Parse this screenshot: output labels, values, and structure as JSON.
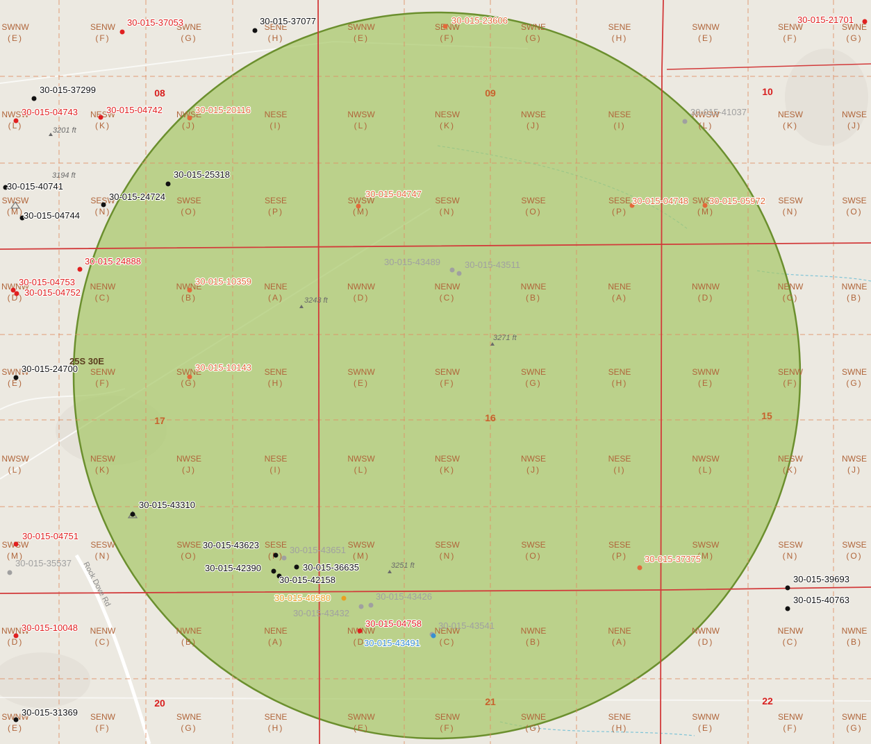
{
  "colors": {
    "background": "#ece9e1",
    "radius_fill": "#a7c76a",
    "radius_stroke": "#6b8f2e",
    "section_line": "#d23a3a",
    "quarter_line": "#e08d63",
    "qq_label": "#b0653a",
    "section_label": "#d81e1e",
    "section_label_inside": "#c7612c",
    "road": "#ffffff",
    "stream": "#7fc4d6"
  },
  "township": "25S 30E",
  "road_label": "Rock Dove Rd",
  "sections": [
    {
      "label": "08",
      "inside": false
    },
    {
      "label": "09",
      "inside": true
    },
    {
      "label": "10",
      "inside": false
    },
    {
      "label": "17",
      "inside": true
    },
    {
      "label": "16",
      "inside": true
    },
    {
      "label": "15",
      "inside": true
    },
    {
      "label": "20",
      "inside": false
    },
    {
      "label": "21",
      "inside": true
    },
    {
      "label": "22",
      "inside": false
    }
  ],
  "qq_rows": [
    [
      [
        "SWNW",
        "E"
      ],
      [
        "SENW",
        "F"
      ],
      [
        "SWNE",
        "G"
      ],
      [
        "SENE",
        "H"
      ],
      [
        "SWNW",
        "E"
      ],
      [
        "SENW",
        "F"
      ],
      [
        "SWNE",
        "G"
      ],
      [
        "SENE",
        "H"
      ],
      [
        "SWNW",
        "E"
      ],
      [
        "SENW",
        "F"
      ],
      [
        "SWNE",
        "G"
      ]
    ],
    [
      [
        "NWSW",
        "L"
      ],
      [
        "NESW",
        "K"
      ],
      [
        "NWSE",
        "J"
      ],
      [
        "NESE",
        "I"
      ],
      [
        "NWSW",
        "L"
      ],
      [
        "NESW",
        "K"
      ],
      [
        "NWSE",
        "J"
      ],
      [
        "NESE",
        "I"
      ],
      [
        "NWSW",
        "L"
      ],
      [
        "NESW",
        "K"
      ],
      [
        "NWSE",
        "J"
      ]
    ],
    [
      [
        "SWSW",
        "M"
      ],
      [
        "SESW",
        "N"
      ],
      [
        "SWSE",
        "O"
      ],
      [
        "SESE",
        "P"
      ],
      [
        "SWSW",
        "M"
      ],
      [
        "SESW",
        "N"
      ],
      [
        "SWSE",
        "O"
      ],
      [
        "SESE",
        "P"
      ],
      [
        "SWSW",
        "M"
      ],
      [
        "SESW",
        "N"
      ],
      [
        "SWSE",
        "O"
      ]
    ],
    [
      [
        "NWNW",
        "D"
      ],
      [
        "NENW",
        "C"
      ],
      [
        "NWNE",
        "B"
      ],
      [
        "NENE",
        "A"
      ],
      [
        "NWNW",
        "D"
      ],
      [
        "NENW",
        "C"
      ],
      [
        "NWNE",
        "B"
      ],
      [
        "NENE",
        "A"
      ],
      [
        "NWNW",
        "D"
      ],
      [
        "NENW",
        "C"
      ],
      [
        "NWNE",
        "B"
      ]
    ],
    [
      [
        "SWNW",
        "E"
      ],
      [
        "SENW",
        "F"
      ],
      [
        "SWNE",
        "G"
      ],
      [
        "SENE",
        "H"
      ],
      [
        "SWNW",
        "E"
      ],
      [
        "SENW",
        "F"
      ],
      [
        "SWNE",
        "G"
      ],
      [
        "SENE",
        "H"
      ],
      [
        "SWNW",
        "E"
      ],
      [
        "SENW",
        "F"
      ],
      [
        "SWNE",
        "G"
      ]
    ],
    [
      [
        "NWSW",
        "L"
      ],
      [
        "NESW",
        "K"
      ],
      [
        "NWSE",
        "J"
      ],
      [
        "NESE",
        "I"
      ],
      [
        "NWSW",
        "L"
      ],
      [
        "NESW",
        "K"
      ],
      [
        "NWSE",
        "J"
      ],
      [
        "NESE",
        "I"
      ],
      [
        "NWSW",
        "L"
      ],
      [
        "NESW",
        "K"
      ],
      [
        "NWSE",
        "J"
      ]
    ],
    [
      [
        "SWSW",
        "M"
      ],
      [
        "SESW",
        "N"
      ],
      [
        "SWSE",
        "O"
      ],
      [
        "SESE",
        "P"
      ],
      [
        "SWSW",
        "M"
      ],
      [
        "SESW",
        "N"
      ],
      [
        "SWSE",
        "O"
      ],
      [
        "SESE",
        "P"
      ],
      [
        "SWSW",
        "M"
      ],
      [
        "SESW",
        "N"
      ],
      [
        "SWSE",
        "O"
      ]
    ],
    [
      [
        "NWNW",
        "D"
      ],
      [
        "NENW",
        "C"
      ],
      [
        "NWNE",
        "B"
      ],
      [
        "NENE",
        "A"
      ],
      [
        "NWNW",
        "D"
      ],
      [
        "NENW",
        "C"
      ],
      [
        "NWNE",
        "B"
      ],
      [
        "NENE",
        "A"
      ],
      [
        "NWNW",
        "D"
      ],
      [
        "NENW",
        "C"
      ],
      [
        "NWNE",
        "B"
      ]
    ],
    [
      [
        "SWNW",
        "E"
      ],
      [
        "SENW",
        "F"
      ],
      [
        "SWNE",
        "G"
      ],
      [
        "SENE",
        "H"
      ],
      [
        "SWNW",
        "E"
      ],
      [
        "SENW",
        "F"
      ],
      [
        "SWNE",
        "G"
      ],
      [
        "SENE",
        "H"
      ],
      [
        "SWNW",
        "E"
      ],
      [
        "SENW",
        "F"
      ],
      [
        "SWNE",
        "G"
      ]
    ]
  ],
  "elevations": [
    "3201 ft",
    "3194 ft",
    "3243 ft",
    "3271 ft",
    "3251 ft"
  ],
  "wells": [
    {
      "api": "30-015-37053",
      "color": "#e02020"
    },
    {
      "api": "30-015-37077",
      "color": "#111111"
    },
    {
      "api": "30-015-23606",
      "color": "#e26a3a"
    },
    {
      "api": "30-015-21701",
      "color": "#e02020"
    },
    {
      "api": "30-015-37299",
      "color": "#111111"
    },
    {
      "api": "30-015-04743",
      "color": "#e02020"
    },
    {
      "api": "30-015-04742",
      "color": "#e02020"
    },
    {
      "api": "30-015-20116",
      "color": "#e26a3a"
    },
    {
      "api": "30-015-41037",
      "color": "#a0a0a0"
    },
    {
      "api": "30-015-25318",
      "color": "#111111"
    },
    {
      "api": "30-015-40741",
      "color": "#111111"
    },
    {
      "api": "30-015-24724",
      "color": "#111111"
    },
    {
      "api": "30-015-04744",
      "color": "#111111"
    },
    {
      "api": "30-015-04747",
      "color": "#e26a3a"
    },
    {
      "api": "30-015-04748",
      "color": "#e26a3a"
    },
    {
      "api": "30-015-05972",
      "color": "#e26a3a"
    },
    {
      "api": "30-015-24888",
      "color": "#e02020"
    },
    {
      "api": "30-015-43489",
      "color": "#a0a0a0"
    },
    {
      "api": "30-015-43511",
      "color": "#a0a0a0"
    },
    {
      "api": "30-015-04753",
      "color": "#e02020"
    },
    {
      "api": "30-015-04752",
      "color": "#e02020"
    },
    {
      "api": "30-015-10359",
      "color": "#e26a3a"
    },
    {
      "api": "30-015-24700",
      "color": "#111111"
    },
    {
      "api": "30-015-10143",
      "color": "#e26a3a"
    },
    {
      "api": "30-015-43310",
      "color": "#111111"
    },
    {
      "api": "30-015-04751",
      "color": "#e02020"
    },
    {
      "api": "30-015-35537",
      "color": "#a0a0a0"
    },
    {
      "api": "30-015-43623",
      "color": "#111111"
    },
    {
      "api": "30-015-43651",
      "color": "#a0a0a0"
    },
    {
      "api": "30-015-42390",
      "color": "#111111"
    },
    {
      "api": "30-015-36635",
      "color": "#111111"
    },
    {
      "api": "30-015-42158",
      "color": "#111111"
    },
    {
      "api": "30-015-37375",
      "color": "#e26a3a"
    },
    {
      "api": "30-015-40580",
      "color": "#e8a020"
    },
    {
      "api": "30-015-43426",
      "color": "#a0a0a0"
    },
    {
      "api": "30-015-43432",
      "color": "#a0a0a0"
    },
    {
      "api": "30-015-04758",
      "color": "#e02020"
    },
    {
      "api": "30-015-43541",
      "color": "#a0a0a0"
    },
    {
      "api": "30-015-43491",
      "color": "#3a8fd0"
    },
    {
      "api": "30-015-39693",
      "color": "#111111"
    },
    {
      "api": "30-015-40763",
      "color": "#111111"
    },
    {
      "api": "30-015-10048",
      "color": "#e02020"
    },
    {
      "api": "30-015-31369",
      "color": "#111111"
    }
  ]
}
